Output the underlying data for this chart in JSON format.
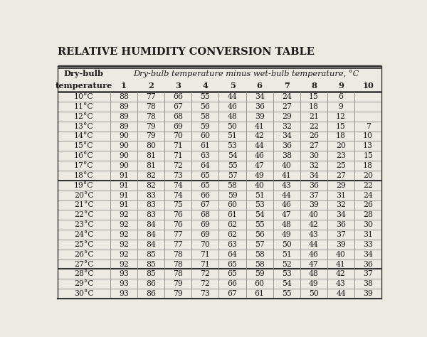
{
  "title": "Relative Humidity Conversion Table",
  "col_header_main": "Dry-bulb temperature minus wet-bulb temperature, °C",
  "col_header_left1": "Dry-bulb",
  "col_header_left2": "temperature",
  "col_numbers": [
    "1",
    "2",
    "3",
    "4",
    "5",
    "6",
    "7",
    "8",
    "9",
    "10"
  ],
  "rows": [
    [
      "10°C",
      "88",
      "77",
      "66",
      "55",
      "44",
      "34",
      "24",
      "15",
      "6",
      ""
    ],
    [
      "11°C",
      "89",
      "78",
      "67",
      "56",
      "46",
      "36",
      "27",
      "18",
      "9",
      ""
    ],
    [
      "12°C",
      "89",
      "78",
      "68",
      "58",
      "48",
      "39",
      "29",
      "21",
      "12",
      ""
    ],
    [
      "13°C",
      "89",
      "79",
      "69",
      "59",
      "50",
      "41",
      "32",
      "22",
      "15",
      "7"
    ],
    [
      "14°C",
      "90",
      "79",
      "70",
      "60",
      "51",
      "42",
      "34",
      "26",
      "18",
      "10"
    ],
    [
      "15°C",
      "90",
      "80",
      "71",
      "61",
      "53",
      "44",
      "36",
      "27",
      "20",
      "13"
    ],
    [
      "16°C",
      "90",
      "81",
      "71",
      "63",
      "54",
      "46",
      "38",
      "30",
      "23",
      "15"
    ],
    [
      "17°C",
      "90",
      "81",
      "72",
      "64",
      "55",
      "47",
      "40",
      "32",
      "25",
      "18"
    ],
    [
      "18°C",
      "91",
      "82",
      "73",
      "65",
      "57",
      "49",
      "41",
      "34",
      "27",
      "20"
    ],
    [
      "19°C",
      "91",
      "82",
      "74",
      "65",
      "58",
      "40",
      "43",
      "36",
      "29",
      "22"
    ],
    [
      "20°C",
      "91",
      "83",
      "74",
      "66",
      "59",
      "51",
      "44",
      "37",
      "31",
      "24"
    ],
    [
      "21°C",
      "91",
      "83",
      "75",
      "67",
      "60",
      "53",
      "46",
      "39",
      "32",
      "26"
    ],
    [
      "22°C",
      "92",
      "83",
      "76",
      "68",
      "61",
      "54",
      "47",
      "40",
      "34",
      "28"
    ],
    [
      "23°C",
      "92",
      "84",
      "76",
      "69",
      "62",
      "55",
      "48",
      "42",
      "36",
      "30"
    ],
    [
      "24°C",
      "92",
      "84",
      "77",
      "69",
      "62",
      "56",
      "49",
      "43",
      "37",
      "31"
    ],
    [
      "25°C",
      "92",
      "84",
      "77",
      "70",
      "63",
      "57",
      "50",
      "44",
      "39",
      "33"
    ],
    [
      "26°C",
      "92",
      "85",
      "78",
      "71",
      "64",
      "58",
      "51",
      "46",
      "40",
      "34"
    ],
    [
      "27°C",
      "92",
      "85",
      "78",
      "71",
      "65",
      "58",
      "52",
      "47",
      "41",
      "36"
    ],
    [
      "28°C",
      "93",
      "85",
      "78",
      "72",
      "65",
      "59",
      "53",
      "48",
      "42",
      "37"
    ],
    [
      "29°C",
      "93",
      "86",
      "79",
      "72",
      "66",
      "60",
      "54",
      "49",
      "43",
      "38"
    ],
    [
      "30°C",
      "93",
      "86",
      "79",
      "73",
      "67",
      "61",
      "55",
      "50",
      "44",
      "39"
    ]
  ],
  "thick_after_rows": [
    8,
    17
  ],
  "background_color": "#edeae4",
  "text_color": "#1a1a1a",
  "thin_line_color": "#888888",
  "thick_line_color": "#333333",
  "figsize": [
    6.0,
    4.74
  ],
  "dpi": 100
}
